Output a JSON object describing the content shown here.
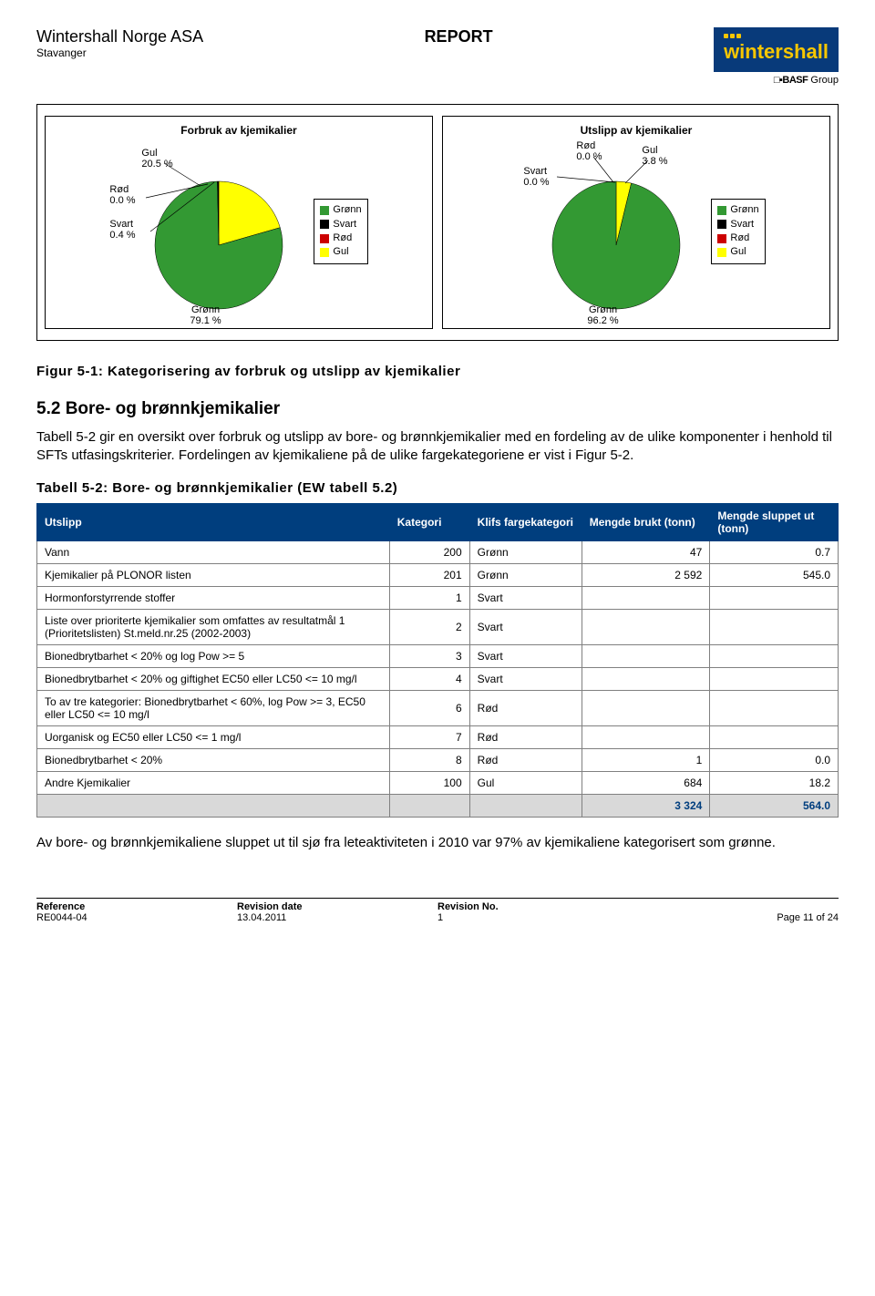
{
  "header": {
    "company": "Wintershall Norge ASA",
    "location": "Stavanger",
    "doc_type": "REPORT",
    "logo_text": "wintershall",
    "basf_group": "Group"
  },
  "colors": {
    "gronn": "#339933",
    "svart": "#000000",
    "rod": "#cc0000",
    "gul": "#ffff00",
    "chart_border": "#000000",
    "header_bg": "#003e7e"
  },
  "chart1": {
    "title": "Forbruk av kjemikalier",
    "type": "pie",
    "slices": [
      {
        "label": "Grønn",
        "value": 79.1,
        "color": "#339933"
      },
      {
        "label": "Svart",
        "value": 0.4,
        "color": "#000000"
      },
      {
        "label": "Rød",
        "value": 0.0,
        "color": "#cc0000"
      },
      {
        "label": "Gul",
        "value": 20.5,
        "color": "#ffff00"
      }
    ],
    "annotations": {
      "gul": "Gul\n20.5 %",
      "rod": "Rød\n0.0 %",
      "svart": "Svart\n0.4 %",
      "gronn": "Grønn\n79.1 %"
    },
    "legend": [
      "Grønn",
      "Svart",
      "Rød",
      "Gul"
    ]
  },
  "chart2": {
    "title": "Utslipp av kjemikalier",
    "type": "pie",
    "slices": [
      {
        "label": "Grønn",
        "value": 96.2,
        "color": "#339933"
      },
      {
        "label": "Svart",
        "value": 0.0,
        "color": "#000000"
      },
      {
        "label": "Rød",
        "value": 0.0,
        "color": "#cc0000"
      },
      {
        "label": "Gul",
        "value": 3.8,
        "color": "#ffff00"
      }
    ],
    "annotations": {
      "rod": "Rød\n0.0 %",
      "svart": "Svart\n0.0 %",
      "gul": "Gul\n3.8 %",
      "gronn": "Grønn\n96.2 %"
    },
    "legend": [
      "Grønn",
      "Svart",
      "Rød",
      "Gul"
    ]
  },
  "fig_caption": "Figur 5-1: Kategorisering av forbruk og utslipp av kjemikalier",
  "section": {
    "num_title": "5.2   Bore- og brønnkjemikalier",
    "para": "Tabell 5-2 gir en oversikt over forbruk og utslipp av bore- og brønnkjemikalier med en fordeling av de ulike komponenter i henhold til SFTs utfasingskriterier. Fordelingen av kjemikaliene på de ulike fargekategoriene er vist i Figur 5-2."
  },
  "table": {
    "caption": "Tabell 5-2: Bore- og brønnkjemikalier (EW tabell 5.2)",
    "columns": [
      "Utslipp",
      "Kategori",
      "Klifs fargekategori",
      "Mengde brukt (tonn)",
      "Mengde sluppet ut (tonn)"
    ],
    "rows": [
      {
        "utslipp": "Vann",
        "kat": "200",
        "farge": "Grønn",
        "brukt": "47",
        "sluppet": "0.7"
      },
      {
        "utslipp": "Kjemikalier på PLONOR listen",
        "kat": "201",
        "farge": "Grønn",
        "brukt": "2 592",
        "sluppet": "545.0"
      },
      {
        "utslipp": "Hormonforstyrrende stoffer",
        "kat": "1",
        "farge": "Svart",
        "brukt": "",
        "sluppet": ""
      },
      {
        "utslipp": "Liste over prioriterte kjemikalier som omfattes av resultatmål 1 (Prioritetslisten) St.meld.nr.25 (2002-2003)",
        "kat": "2",
        "farge": "Svart",
        "brukt": "",
        "sluppet": ""
      },
      {
        "utslipp": "Bionedbrytbarhet < 20% og log Pow >= 5",
        "kat": "3",
        "farge": "Svart",
        "brukt": "",
        "sluppet": ""
      },
      {
        "utslipp": "Bionedbrytbarhet < 20% og giftighet EC50 eller LC50 <= 10 mg/l",
        "kat": "4",
        "farge": "Svart",
        "brukt": "",
        "sluppet": ""
      },
      {
        "utslipp": "To av tre kategorier: Bionedbrytbarhet < 60%, log Pow >= 3, EC50 eller LC50 <= 10 mg/l",
        "kat": "6",
        "farge": "Rød",
        "brukt": "",
        "sluppet": ""
      },
      {
        "utslipp": "Uorganisk og EC50 eller LC50 <= 1 mg/l",
        "kat": "7",
        "farge": "Rød",
        "brukt": "",
        "sluppet": ""
      },
      {
        "utslipp": "Bionedbrytbarhet < 20%",
        "kat": "8",
        "farge": "Rød",
        "brukt": "1",
        "sluppet": "0.0"
      },
      {
        "utslipp": "Andre Kjemikalier",
        "kat": "100",
        "farge": "Gul",
        "brukt": "684",
        "sluppet": "18.2"
      }
    ],
    "total": {
      "brukt": "3 324",
      "sluppet": "564.0"
    }
  },
  "closing": "Av bore- og brønnkjemikaliene sluppet ut til sjø fra leteaktiviteten i 2010 var 97% av kjemikaliene kategorisert som grønne.",
  "footer": {
    "labels": {
      "ref": "Reference",
      "rev_date": "Revision date",
      "rev_no": "Revision No."
    },
    "values": {
      "ref": "RE0044-04",
      "rev_date": "13.04.2011",
      "rev_no": "1",
      "page": "Page 11 of 24"
    }
  }
}
